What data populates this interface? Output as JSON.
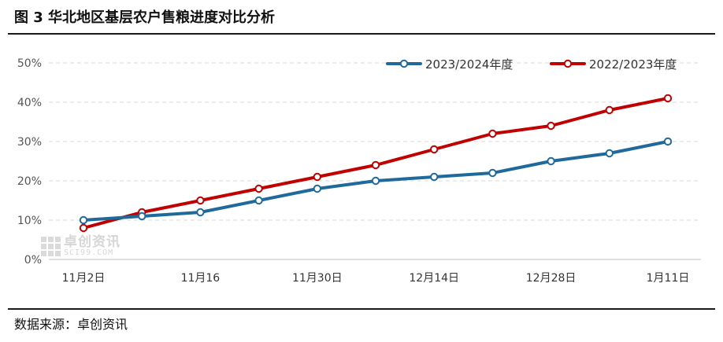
{
  "title": "图 3 华北地区基层农户售粮进度对比分析",
  "source": "数据来源：卓创资讯",
  "watermark": {
    "cn": "卓创资讯",
    "en": "SCI99.COM"
  },
  "chart_data": {
    "type": "line",
    "title": "图 3 华北地区基层农户售粮进度对比分析",
    "xlabel": "",
    "ylabel": "",
    "x_ticks": [
      "11月2日",
      "11月16",
      "11月30日",
      "12月14日",
      "12月28日",
      "1月11日"
    ],
    "ylim": [
      0,
      50
    ],
    "y_ticks": [
      "0%",
      "10%",
      "20%",
      "30%",
      "40%",
      "50%"
    ],
    "grid": true,
    "legend_position": "top-right",
    "series": [
      {
        "name": "2023/2024年度",
        "color": "#1f6a9b",
        "values": [
          10,
          11,
          12,
          15,
          18,
          20,
          21,
          22,
          25,
          27,
          30
        ]
      },
      {
        "name": "2022/2023年度",
        "color": "#c00000",
        "values": [
          8,
          12,
          15,
          18,
          21,
          24,
          28,
          32,
          34,
          38,
          41
        ]
      }
    ]
  }
}
